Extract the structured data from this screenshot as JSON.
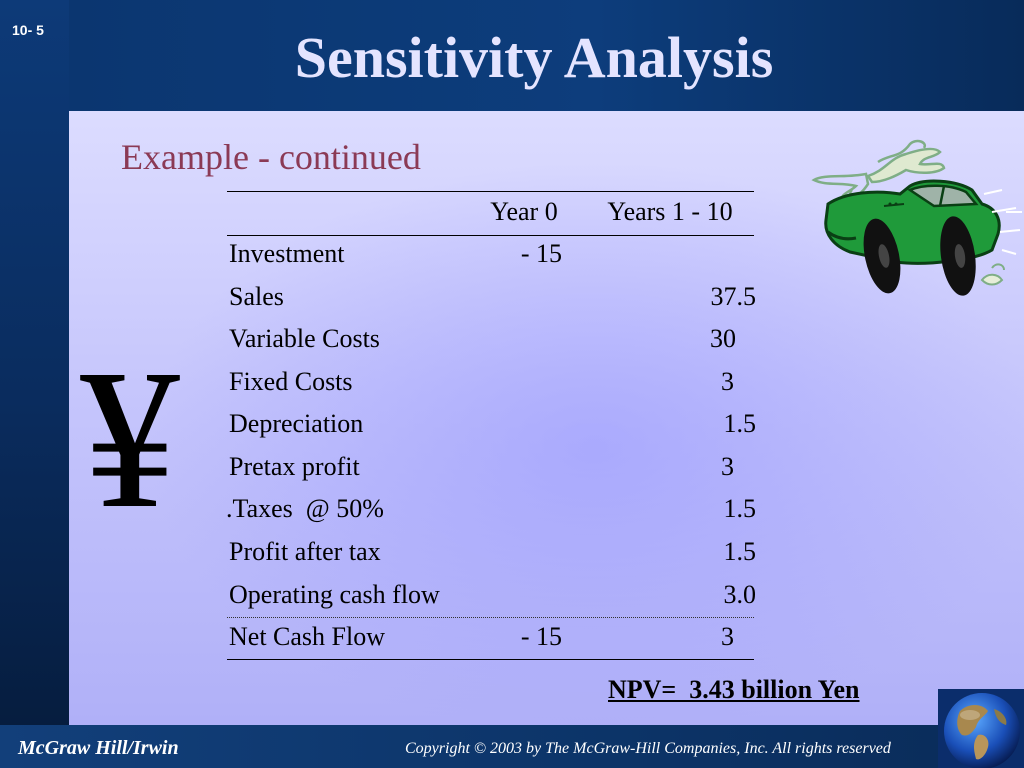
{
  "slide": {
    "number": "10- 5",
    "title": "Sensitivity Analysis",
    "subtitle": "Example - continued",
    "currency_symbol": "¥"
  },
  "table": {
    "headers": [
      "",
      "Year 0",
      "Years 1 - 10"
    ],
    "rows": [
      {
        "label": "Investment",
        "year0": "- 15",
        "years": ""
      },
      {
        "label": "Sales",
        "year0": "",
        "years": "37.5"
      },
      {
        "label": "Variable Costs",
        "year0": "",
        "years": "30"
      },
      {
        "label": "Fixed Costs",
        "year0": "",
        "years": "3"
      },
      {
        "label": "Depreciation",
        "year0": "",
        "years": "1.5"
      },
      {
        "label": "Pretax profit",
        "year0": "",
        "years": "3"
      },
      {
        "label": ".Taxes  @ 50%",
        "year0": "",
        "years": "1.5"
      },
      {
        "label": "Profit after tax",
        "year0": "",
        "years": "1.5"
      },
      {
        "label": "Operating cash flow",
        "year0": "",
        "years": "3.0"
      },
      {
        "label": "Net Cash Flow",
        "year0": "- 15",
        "years": "3"
      }
    ]
  },
  "npv": "NPV=  3.43 billion Yen",
  "footer": {
    "publisher": "McGraw Hill/Irwin",
    "copyright": "Copyright © 2003 by The McGraw-Hill Companies, Inc. All rights reserved"
  },
  "icons": {
    "car": "car-icon",
    "globe": "globe-icon"
  },
  "colors": {
    "title": "#e4e4ff",
    "subtitle": "#8b3a55",
    "car_body": "#1f9a3a",
    "background_top": "#0c2f61"
  }
}
